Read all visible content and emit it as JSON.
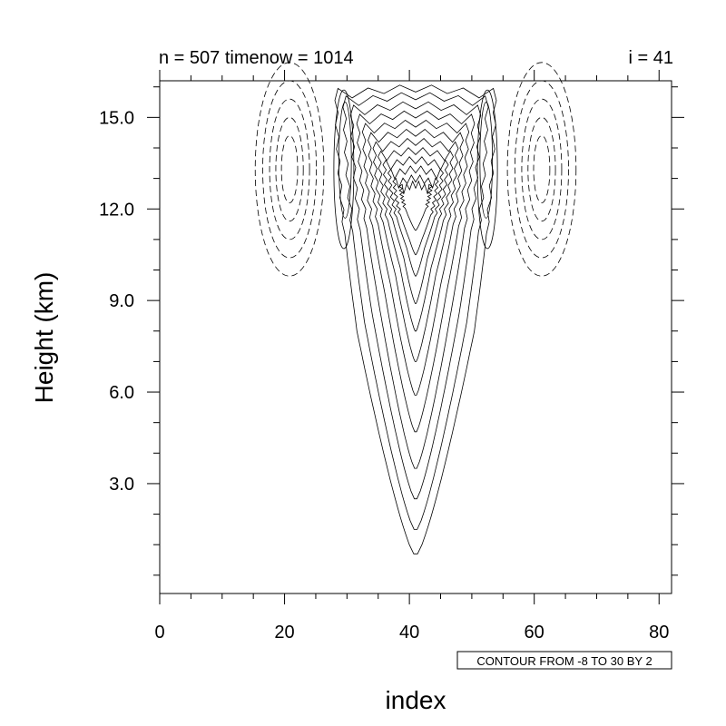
{
  "chart_data": {
    "type": "contour",
    "title_left": "n = 507 timenow = 1014",
    "title_right": "i = 41",
    "xlabel": "index",
    "ylabel": "Height (km)",
    "xlim": [
      0,
      82
    ],
    "ylim": [
      -0.6,
      16.2
    ],
    "x_major_ticks": [
      0,
      20,
      40,
      60,
      80
    ],
    "x_tick_labels": [
      "0",
      "20",
      "40",
      "60",
      "80"
    ],
    "x_minor_step": 5,
    "y_major_ticks": [
      3,
      6,
      9,
      12,
      15
    ],
    "y_tick_labels": [
      "3.0",
      "6.0",
      "9.0",
      "12.0",
      "15.0"
    ],
    "y_minor_step": 1,
    "contour_info": "CONTOUR FROM -8 TO 30 BY 2",
    "contour_range": {
      "min": -8,
      "max": 30,
      "step": 2
    },
    "positive_contours_solid": true,
    "negative_contours_dashed": true,
    "center_index": 41,
    "plume": {
      "solid_levels": [
        {
          "center": 41,
          "base": 0.7,
          "base_width": 6,
          "shaft_width": 9.4,
          "neck_height": 8.0,
          "top": 15.95,
          "top_half_width": 12.7
        },
        {
          "center": 41,
          "base": 1.5,
          "base_width": 5,
          "shaft_width": 8.2,
          "neck_height": 8.3,
          "top": 15.7,
          "top_half_width": 11.4
        },
        {
          "center": 41,
          "base": 2.5,
          "base_width": 4.2,
          "shaft_width": 7.0,
          "neck_height": 8.6,
          "top": 15.4,
          "top_half_width": 10.2
        },
        {
          "center": 41,
          "base": 3.5,
          "base_width": 3.6,
          "shaft_width": 5.9,
          "neck_height": 8.9,
          "top": 15.1,
          "top_half_width": 9.2
        },
        {
          "center": 41,
          "base": 4.7,
          "base_width": 3.0,
          "shaft_width": 4.9,
          "neck_height": 9.2,
          "top": 14.8,
          "top_half_width": 8.3
        },
        {
          "center": 41,
          "base": 5.9,
          "base_width": 2.5,
          "shaft_width": 4.0,
          "neck_height": 9.5,
          "top": 14.5,
          "top_half_width": 7.4
        },
        {
          "center": 41,
          "base": 7.0,
          "base_width": 2.0,
          "shaft_width": 3.2,
          "neck_height": 9.8,
          "top": 14.2,
          "top_half_width": 6.6
        },
        {
          "center": 41,
          "base": 8.0,
          "base_width": 1.6,
          "shaft_width": 2.5,
          "neck_height": 10.1,
          "top": 13.9,
          "top_half_width": 5.8
        },
        {
          "center": 41,
          "base": 8.9,
          "base_width": 1.2,
          "shaft_width": 1.9,
          "neck_height": 10.4,
          "top": 13.6,
          "top_half_width": 5.0
        },
        {
          "center": 41,
          "base": 9.8,
          "base_width": 0.9,
          "shaft_width": 1.4,
          "neck_height": 10.7,
          "top": 13.3,
          "top_half_width": 4.2
        },
        {
          "center": 41,
          "base": 10.5,
          "base_width": 0.6,
          "shaft_width": 1.0,
          "neck_height": 11.0,
          "top": 13.0,
          "top_half_width": 3.4
        },
        {
          "center": 41,
          "base": 11.3,
          "base_width": 0.4,
          "shaft_width": 0.6,
          "neck_height": 11.5,
          "top": 12.8,
          "top_half_width": 2.4
        }
      ],
      "side_lobes": [
        {
          "center_x": 29.5,
          "center_y": 13.3,
          "rx": 1.6,
          "ry": 2.6
        },
        {
          "center_x": 29.7,
          "center_y": 13.6,
          "rx": 1.0,
          "ry": 1.9
        },
        {
          "center_x": 52.5,
          "center_y": 13.3,
          "rx": 1.6,
          "ry": 2.6
        },
        {
          "center_x": 52.3,
          "center_y": 13.6,
          "rx": 1.0,
          "ry": 1.9
        }
      ]
    },
    "negative_lobes": [
      {
        "center_x": 20.8,
        "center_y": 13.3,
        "levels": [
          {
            "rx": 5.5,
            "ry": 3.5
          },
          {
            "rx": 4.3,
            "ry": 2.9
          },
          {
            "rx": 3.2,
            "ry": 2.3
          },
          {
            "rx": 2.2,
            "ry": 1.7
          },
          {
            "rx": 1.3,
            "ry": 1.1
          }
        ]
      },
      {
        "center_x": 61.2,
        "center_y": 13.3,
        "levels": [
          {
            "rx": 5.5,
            "ry": 3.5
          },
          {
            "rx": 4.3,
            "ry": 2.9
          },
          {
            "rx": 3.2,
            "ry": 2.3
          },
          {
            "rx": 2.2,
            "ry": 1.7
          },
          {
            "rx": 1.3,
            "ry": 1.1
          }
        ]
      }
    ]
  }
}
